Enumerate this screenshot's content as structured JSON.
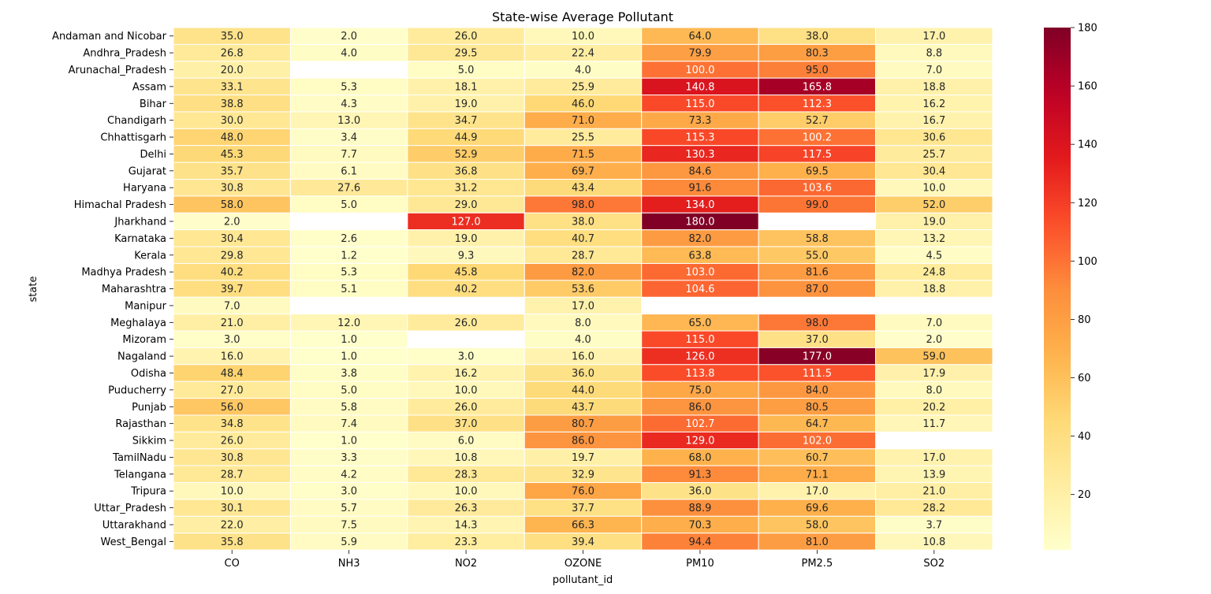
{
  "chart_data": {
    "type": "heatmap",
    "title": "State-wise Average Pollutant",
    "xlabel": "pollutant_id",
    "ylabel": "state",
    "columns": [
      "CO",
      "NH3",
      "NO2",
      "OZONE",
      "PM10",
      "PM2.5",
      "SO2"
    ],
    "rows": [
      "Andaman and Nicobar",
      "Andhra_Pradesh",
      "Arunachal_Pradesh",
      "Assam",
      "Bihar",
      "Chandigarh",
      "Chhattisgarh",
      "Delhi",
      "Gujarat",
      "Haryana",
      "Himachal Pradesh",
      "Jharkhand",
      "Karnataka",
      "Kerala",
      "Madhya Pradesh",
      "Maharashtra",
      "Manipur",
      "Meghalaya",
      "Mizoram",
      "Nagaland",
      "Odisha",
      "Puducherry",
      "Punjab",
      "Rajasthan",
      "Sikkim",
      "TamilNadu",
      "Telangana",
      "Tripura",
      "Uttar_Pradesh",
      "Uttarakhand",
      "West_Bengal"
    ],
    "values": [
      [
        35.0,
        2.0,
        26.0,
        10.0,
        64.0,
        38.0,
        17.0
      ],
      [
        26.8,
        4.0,
        29.5,
        22.4,
        79.9,
        80.3,
        8.8
      ],
      [
        20.0,
        null,
        5.0,
        4.0,
        100.0,
        95.0,
        7.0
      ],
      [
        33.1,
        5.3,
        18.1,
        25.9,
        140.8,
        165.8,
        18.8
      ],
      [
        38.8,
        4.3,
        19.0,
        46.0,
        115.0,
        112.3,
        16.2
      ],
      [
        30.0,
        13.0,
        34.7,
        71.0,
        73.3,
        52.7,
        16.7
      ],
      [
        48.0,
        3.4,
        44.9,
        25.5,
        115.3,
        100.2,
        30.6
      ],
      [
        45.3,
        7.7,
        52.9,
        71.5,
        130.3,
        117.5,
        25.7
      ],
      [
        35.7,
        6.1,
        36.8,
        69.7,
        84.6,
        69.5,
        30.4
      ],
      [
        30.8,
        27.6,
        31.2,
        43.4,
        91.6,
        103.6,
        10.0
      ],
      [
        58.0,
        5.0,
        29.0,
        98.0,
        134.0,
        99.0,
        52.0
      ],
      [
        2.0,
        null,
        127.0,
        38.0,
        180.0,
        null,
        19.0
      ],
      [
        30.4,
        2.6,
        19.0,
        40.7,
        82.0,
        58.8,
        13.2
      ],
      [
        29.8,
        1.2,
        9.3,
        28.7,
        63.8,
        55.0,
        4.5
      ],
      [
        40.2,
        5.3,
        45.8,
        82.0,
        103.0,
        81.6,
        24.8
      ],
      [
        39.7,
        5.1,
        40.2,
        53.6,
        104.6,
        87.0,
        18.8
      ],
      [
        7.0,
        null,
        null,
        17.0,
        null,
        null,
        null
      ],
      [
        21.0,
        12.0,
        26.0,
        8.0,
        65.0,
        98.0,
        7.0
      ],
      [
        3.0,
        1.0,
        null,
        4.0,
        115.0,
        37.0,
        2.0
      ],
      [
        16.0,
        1.0,
        3.0,
        16.0,
        126.0,
        177.0,
        59.0
      ],
      [
        48.4,
        3.8,
        16.2,
        36.0,
        113.8,
        111.5,
        17.9
      ],
      [
        27.0,
        5.0,
        10.0,
        44.0,
        75.0,
        84.0,
        8.0
      ],
      [
        56.0,
        5.8,
        26.0,
        43.7,
        86.0,
        80.5,
        20.2
      ],
      [
        34.8,
        7.4,
        37.0,
        80.7,
        102.7,
        64.7,
        11.7
      ],
      [
        26.0,
        1.0,
        6.0,
        86.0,
        129.0,
        102.0,
        null
      ],
      [
        30.8,
        3.3,
        10.8,
        19.7,
        68.0,
        60.7,
        17.0
      ],
      [
        28.7,
        4.2,
        28.3,
        32.9,
        91.3,
        71.1,
        13.9
      ],
      [
        10.0,
        3.0,
        10.0,
        76.0,
        36.0,
        17.0,
        21.0
      ],
      [
        30.1,
        5.7,
        26.3,
        37.7,
        88.9,
        69.6,
        28.2
      ],
      [
        22.0,
        7.5,
        14.3,
        66.3,
        70.3,
        58.0,
        3.7
      ],
      [
        35.8,
        5.9,
        23.3,
        39.4,
        94.4,
        81.0,
        10.8
      ]
    ],
    "colormap": "YlOrRd",
    "colorbar": {
      "range": [
        1.0,
        180.0
      ],
      "ticks": [
        20,
        40,
        60,
        80,
        100,
        120,
        140,
        160,
        180
      ]
    },
    "missing_cells": "blank",
    "value_format": "one decimal"
  }
}
